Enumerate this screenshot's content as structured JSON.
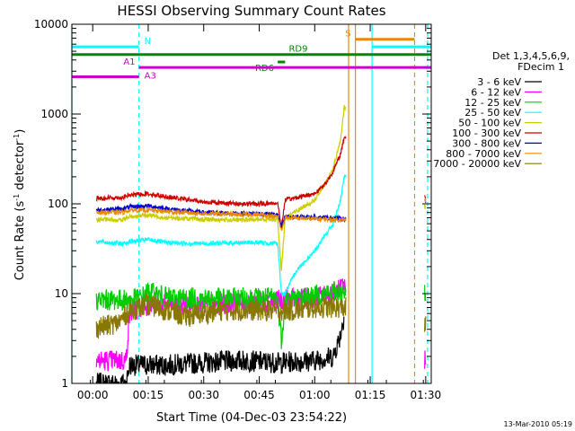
{
  "chart_data": {
    "type": "line",
    "title": "HESSI Observing Summary Count Rates",
    "xlabel": "Start Time (04-Dec-03 23:54:22)",
    "ylabel_main": "Count Rate (s",
    "ylabel_sup1": "-1",
    "ylabel_mid": " detector",
    "ylabel_sup2": "-1",
    "ylabel_end": ")",
    "y_scale": "log",
    "ylim": [
      1,
      10000
    ],
    "xlim": [
      "23:54:22",
      "01:31:30"
    ],
    "x_ticks": [
      "00:00",
      "00:15",
      "00:30",
      "00:45",
      "01:00",
      "01:15",
      "01:30"
    ],
    "y_ticks": [
      "1",
      "10",
      "100",
      "1000",
      "10000"
    ],
    "legend": {
      "placement": "right",
      "header_1": "Det 1,3,4,5,6,9,",
      "header_2": "FDecim 1",
      "entries": [
        {
          "label": "3 - 6 keV",
          "color": "#000000"
        },
        {
          "label": "6 - 12 keV",
          "color": "#ff00ff"
        },
        {
          "label": "12 - 25 keV",
          "color": "#00cc00"
        },
        {
          "label": "25 - 50 keV",
          "color": "#00ffff"
        },
        {
          "label": "50 - 100 keV",
          "color": "#cccc00"
        },
        {
          "label": "100 - 300 keV",
          "color": "#cc0000"
        },
        {
          "label": "300 - 800 keV",
          "color": "#0000cc"
        },
        {
          "label": "800 - 7000 keV",
          "color": "#ee8800"
        },
        {
          "label": "7000 - 20000 keV",
          "color": "#887700"
        }
      ]
    },
    "series": [
      {
        "name": "3 - 6 keV",
        "color": "#000000",
        "points": [
          [
            "00:01",
            1
          ],
          [
            "00:09",
            1
          ],
          [
            "00:10",
            1.6
          ],
          [
            "00:20",
            1.6
          ],
          [
            "00:30",
            1.7
          ],
          [
            "00:40",
            1.8
          ],
          [
            "00:50",
            1.7
          ],
          [
            "01:00",
            1.8
          ],
          [
            "01:05",
            2.0
          ],
          [
            "01:07",
            3.5
          ],
          [
            "01:08",
            6.0
          ]
        ]
      },
      {
        "name": "6 - 12 keV",
        "color": "#ff00ff",
        "points": [
          [
            "00:01",
            1.8
          ],
          [
            "00:04",
            1.8
          ],
          [
            "00:07",
            1.8
          ],
          [
            "00:09",
            1.8
          ],
          [
            "00:10",
            6.2
          ],
          [
            "00:15",
            7.5
          ],
          [
            "00:30",
            7.5
          ],
          [
            "00:45",
            8.0
          ],
          [
            "00:52",
            8.5
          ],
          [
            "01:00",
            9.0
          ],
          [
            "01:05",
            10.0
          ],
          [
            "01:08",
            12.0
          ],
          [
            "01:30",
            1.8
          ]
        ]
      },
      {
        "name": "12 - 25 keV",
        "color": "#00cc00",
        "points": [
          [
            "00:01",
            8.5
          ],
          [
            "00:10",
            8.5
          ],
          [
            "00:13",
            9.0
          ],
          [
            "00:15",
            10.5
          ],
          [
            "00:20",
            9.0
          ],
          [
            "00:30",
            8.8
          ],
          [
            "00:45",
            9.0
          ],
          [
            "00:50",
            9.0
          ],
          [
            "00:51",
            3.0
          ],
          [
            "00:52",
            8.5
          ],
          [
            "01:00",
            9.5
          ],
          [
            "01:05",
            10.5
          ],
          [
            "01:08",
            11.0
          ],
          [
            "01:30",
            9.5
          ]
        ]
      },
      {
        "name": "25 - 50 keV",
        "color": "#00ffff",
        "points": [
          [
            "00:01",
            38
          ],
          [
            "00:08",
            36
          ],
          [
            "00:10",
            38
          ],
          [
            "00:15",
            40
          ],
          [
            "00:20",
            37
          ],
          [
            "00:30",
            36
          ],
          [
            "00:40",
            37
          ],
          [
            "00:45",
            37
          ],
          [
            "00:50",
            36
          ],
          [
            "00:51",
            10
          ],
          [
            "00:52",
            10
          ],
          [
            "00:55",
            18
          ],
          [
            "01:00",
            30
          ],
          [
            "01:05",
            60
          ],
          [
            "01:07",
            110
          ],
          [
            "01:08",
            200
          ],
          [
            "01:30",
            95
          ]
        ]
      },
      {
        "name": "50 - 100 keV",
        "color": "#cccc00",
        "points": [
          [
            "00:01",
            67
          ],
          [
            "00:08",
            66
          ],
          [
            "00:10",
            72
          ],
          [
            "00:15",
            75
          ],
          [
            "00:20",
            70
          ],
          [
            "00:30",
            67
          ],
          [
            "00:40",
            66
          ],
          [
            "00:45",
            67
          ],
          [
            "00:50",
            68
          ],
          [
            "00:51",
            18
          ],
          [
            "00:52",
            70
          ],
          [
            "01:00",
            110
          ],
          [
            "01:03",
            170
          ],
          [
            "01:05",
            250
          ],
          [
            "01:07",
            520
          ],
          [
            "01:08",
            1200
          ],
          [
            "01:30",
            90
          ]
        ]
      },
      {
        "name": "100 - 300 keV",
        "color": "#cc0000",
        "points": [
          [
            "00:01",
            115
          ],
          [
            "00:08",
            118
          ],
          [
            "00:10",
            125
          ],
          [
            "00:15",
            130
          ],
          [
            "00:20",
            120
          ],
          [
            "00:30",
            105
          ],
          [
            "00:40",
            100
          ],
          [
            "00:45",
            100
          ],
          [
            "00:50",
            102
          ],
          [
            "00:51",
            55
          ],
          [
            "00:52",
            110
          ],
          [
            "01:00",
            130
          ],
          [
            "01:03",
            170
          ],
          [
            "01:05",
            230
          ],
          [
            "01:07",
            360
          ],
          [
            "01:08",
            560
          ],
          [
            "01:30",
            120
          ]
        ]
      },
      {
        "name": "300 - 800 keV",
        "color": "#0000cc",
        "points": [
          [
            "00:01",
            85
          ],
          [
            "00:08",
            88
          ],
          [
            "00:10",
            92
          ],
          [
            "00:15",
            95
          ],
          [
            "00:20",
            88
          ],
          [
            "00:30",
            80
          ],
          [
            "00:40",
            78
          ],
          [
            "00:45",
            78
          ],
          [
            "00:50",
            76
          ],
          [
            "00:51",
            55
          ],
          [
            "00:52",
            72
          ],
          [
            "01:00",
            71
          ],
          [
            "01:05",
            70
          ],
          [
            "01:08",
            68
          ],
          [
            "01:30",
            105
          ]
        ]
      },
      {
        "name": "800 - 7000 keV",
        "color": "#ee8800",
        "points": [
          [
            "00:01",
            80
          ],
          [
            "00:08",
            80
          ],
          [
            "00:10",
            85
          ],
          [
            "00:15",
            85
          ],
          [
            "00:20",
            82
          ],
          [
            "00:30",
            78
          ],
          [
            "00:40",
            76
          ],
          [
            "00:45",
            76
          ],
          [
            "00:50",
            72
          ],
          [
            "00:51",
            50
          ],
          [
            "00:52",
            70
          ],
          [
            "01:00",
            68
          ],
          [
            "01:05",
            67
          ],
          [
            "01:08",
            66
          ],
          [
            "01:30",
            110
          ]
        ]
      },
      {
        "name": "7000 - 20000 keV",
        "color": "#887700",
        "points": [
          [
            "00:01",
            4.2
          ],
          [
            "00:04",
            4.4
          ],
          [
            "00:07",
            4.8
          ],
          [
            "00:10",
            6.5
          ],
          [
            "00:15",
            7.5
          ],
          [
            "00:20",
            6.5
          ],
          [
            "00:25",
            5.5
          ],
          [
            "00:30",
            6.0
          ],
          [
            "00:35",
            6.5
          ],
          [
            "00:40",
            6.5
          ],
          [
            "00:45",
            6.5
          ],
          [
            "00:50",
            6.5
          ],
          [
            "00:55",
            6.5
          ],
          [
            "01:00",
            7.0
          ],
          [
            "01:05",
            7.0
          ],
          [
            "01:08",
            7.0
          ],
          [
            "01:30",
            4.5
          ]
        ]
      }
    ],
    "annotations": [
      {
        "label": "N",
        "color": "#00ffff",
        "segments": [
          [
            "23:54:22",
            "00:12:30"
          ],
          [
            "01:15:30",
            "01:31:30"
          ]
        ],
        "level": 5600
      },
      {
        "label": "S",
        "color": "#ee8800",
        "segments": [
          [
            "01:11:00",
            "01:27:00"
          ]
        ],
        "level": 6800
      },
      {
        "label": "RD9",
        "color": "#008800",
        "segments": [
          [
            "23:54:22",
            "01:31:30"
          ]
        ],
        "level": 4600
      },
      {
        "label": "RD6",
        "color": "#008800",
        "segments": [
          [
            "00:50:00",
            "00:52:00"
          ]
        ],
        "level": 3800
      },
      {
        "label": "A1",
        "color": "#cc00cc",
        "segments": [
          [
            "00:12:30",
            "01:31:30"
          ]
        ],
        "level": 3300
      },
      {
        "label": "A3",
        "color": "#cc00cc",
        "segments": [
          [
            "23:54:22",
            "00:12:30"
          ]
        ],
        "level": 2600
      }
    ],
    "vertical_markers": [
      {
        "time": "23:54:22",
        "color": "#00ffff",
        "style": "solid"
      },
      {
        "time": "00:12:30",
        "color": "#00ffff",
        "style": "dashed"
      },
      {
        "time": "01:09:10",
        "color": "#ee8800",
        "style": "solid"
      },
      {
        "time": "01:11:00",
        "color": "#ee8800",
        "style": "solid"
      },
      {
        "time": "01:15:30",
        "color": "#00ffff",
        "style": "solid"
      },
      {
        "time": "01:27:00",
        "color": "#ee8800",
        "style": "dashed"
      },
      {
        "time": "01:30:30",
        "color": "#00ffff",
        "style": "dashed"
      }
    ],
    "timestamp": "13-Mar-2010 05:19"
  }
}
